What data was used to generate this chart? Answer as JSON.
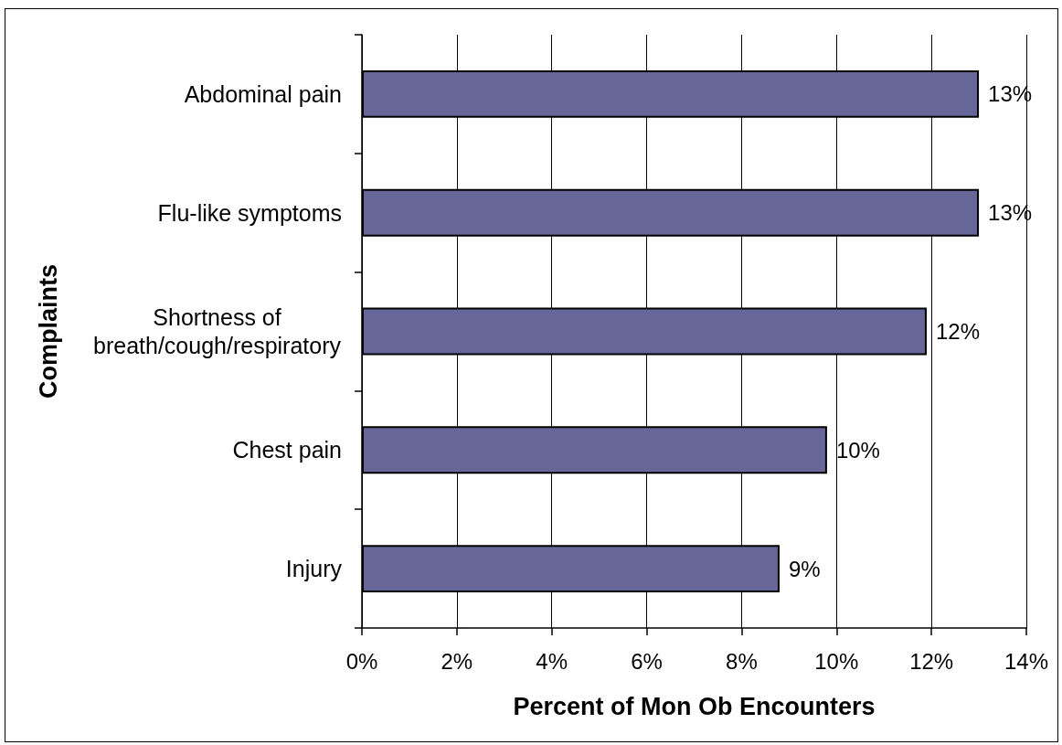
{
  "chart_data": {
    "type": "bar",
    "orientation": "horizontal",
    "categories": [
      "Abdominal pain",
      "Flu-like symptoms",
      "Shortness of breath/cough/respiratory",
      "Chest pain",
      "Injury"
    ],
    "values": [
      13.0,
      13.0,
      11.9,
      9.8,
      8.8
    ],
    "value_labels": [
      "13%",
      "13%",
      "12%",
      "10%",
      "9%"
    ],
    "color": "#666699",
    "xlim": [
      0,
      14
    ],
    "xticks": [
      {
        "value": 0,
        "label": "0%"
      },
      {
        "value": 2,
        "label": "2%"
      },
      {
        "value": 4,
        "label": "4%"
      },
      {
        "value": 6,
        "label": "6%"
      },
      {
        "value": 8,
        "label": "8%"
      },
      {
        "value": 10,
        "label": "10%"
      },
      {
        "value": 12,
        "label": "12%"
      },
      {
        "value": 14,
        "label": "14%"
      }
    ],
    "xlabel": "Percent of Mon Ob Encounters",
    "ylabel": "Complaints",
    "grid": "x"
  }
}
